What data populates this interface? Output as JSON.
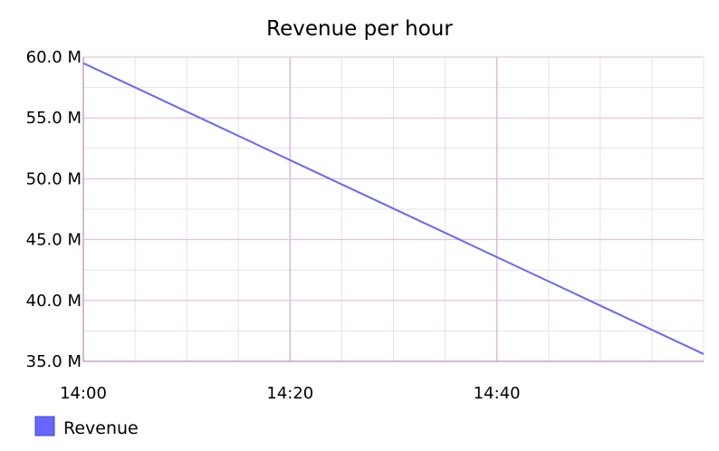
{
  "chart_data": {
    "type": "line",
    "title": "Revenue per hour",
    "xlabel": "",
    "ylabel": "",
    "x_tick_labels": [
      "14:00",
      "14:20",
      "14:40"
    ],
    "y_tick_labels": [
      "60.0 M",
      "55.0 M",
      "50.0 M",
      "45.0 M",
      "40.0 M",
      "35.0 M"
    ],
    "ylim": [
      35000000,
      60000000
    ],
    "grid": true,
    "legend_position": "bottom-left",
    "series": [
      {
        "name": "Revenue",
        "color": "#6666ff",
        "x": [
          "14:00",
          "15:00"
        ],
        "values": [
          59500000,
          35600000
        ]
      }
    ]
  },
  "colors": {
    "grid_major": "#dcb8dc",
    "grid_minor": "#e8e0e8",
    "axis": "#c8a0c8",
    "series": "#6666ff"
  }
}
